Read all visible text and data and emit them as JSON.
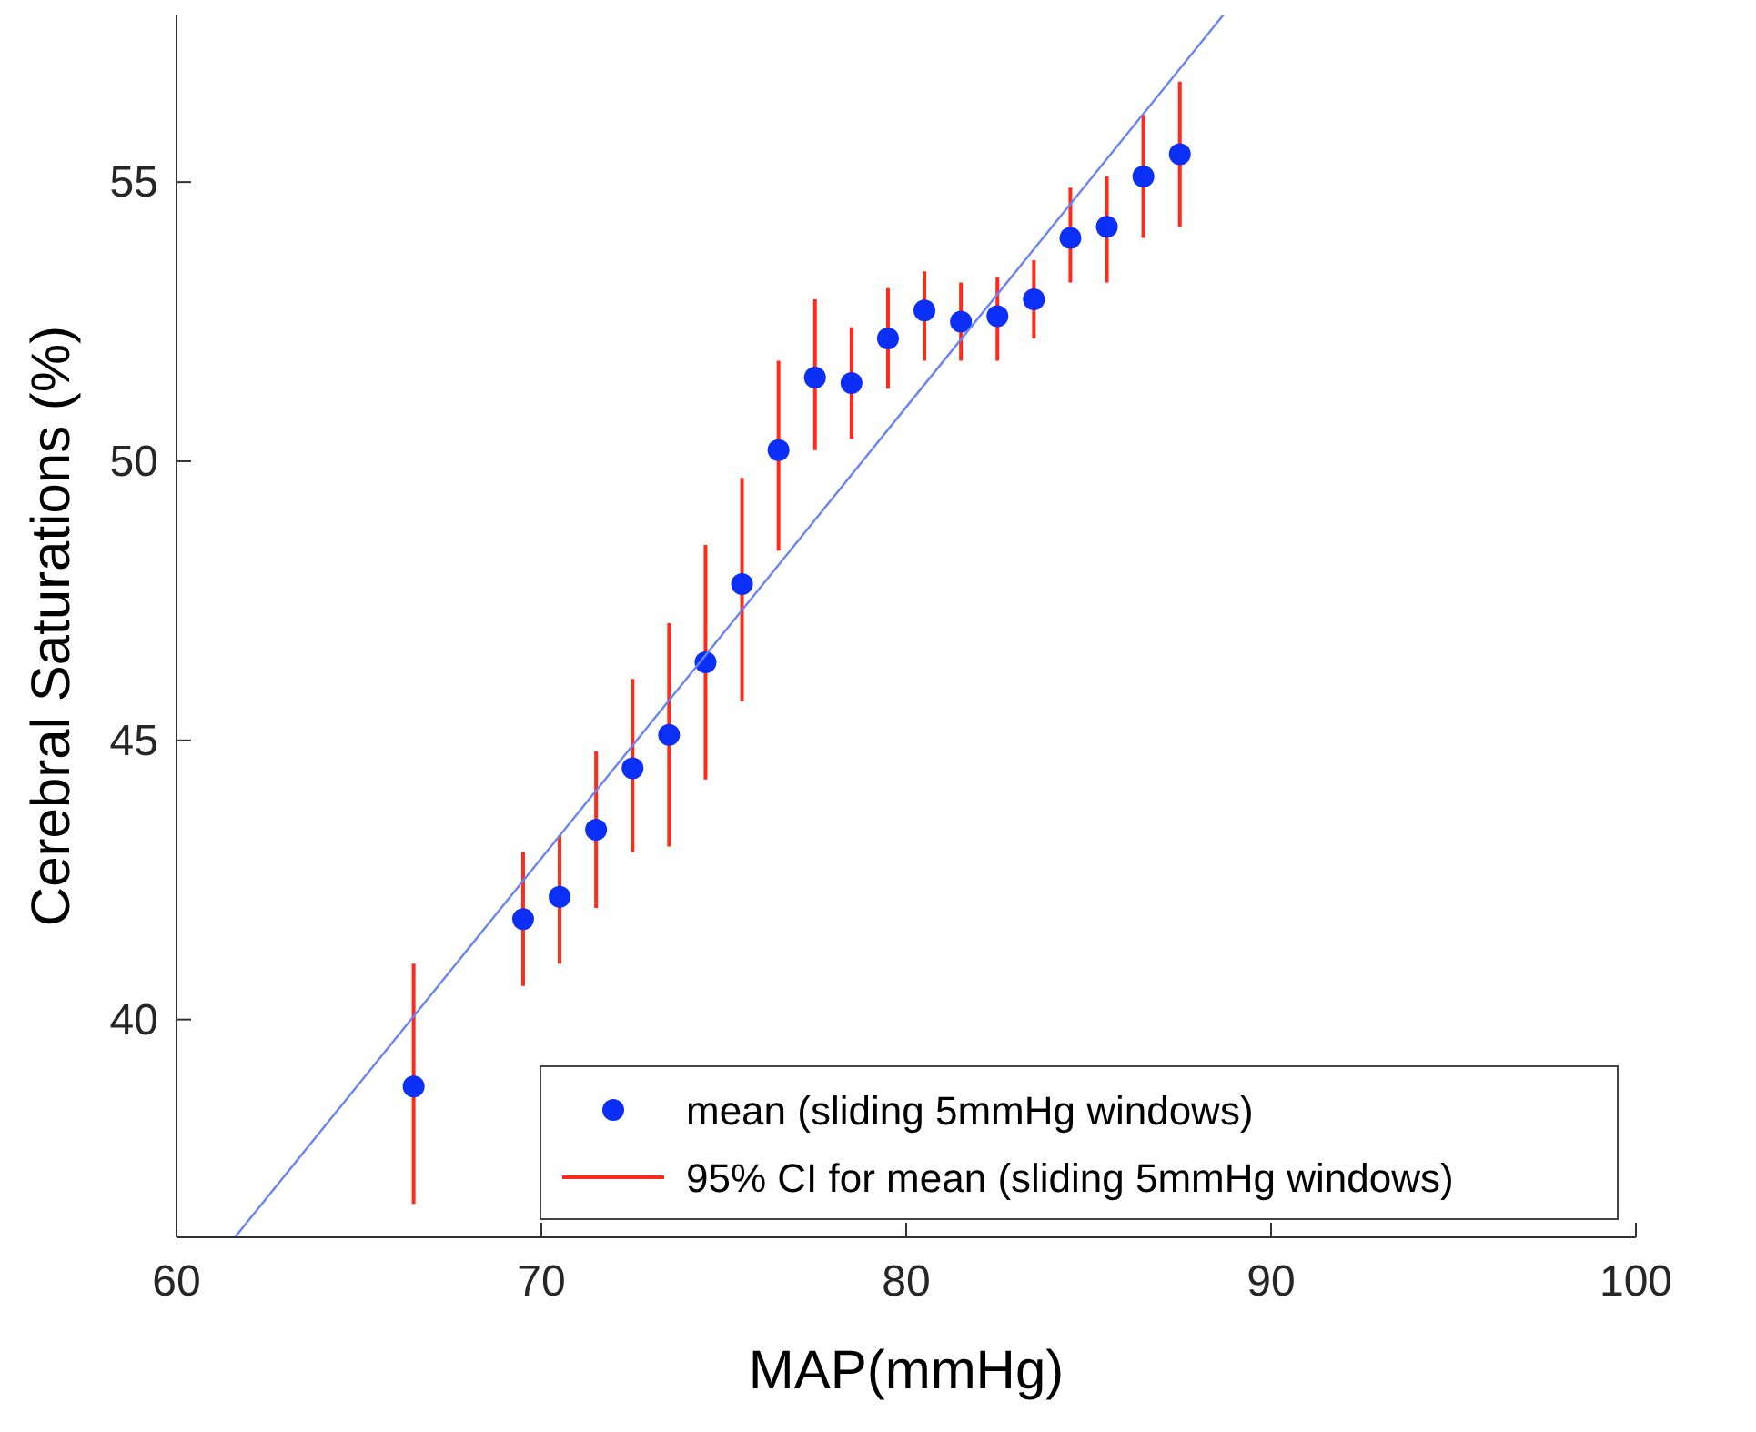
{
  "chart_data": {
    "type": "scatter",
    "xlabel": "MAP(mmHg)",
    "ylabel": "Cerebral Saturations (%)",
    "xlim": [
      60,
      100
    ],
    "xticks": [
      60,
      70,
      80,
      90,
      100
    ],
    "ylim": [
      36.1,
      58
    ],
    "yticks": [
      40,
      45,
      50,
      55
    ],
    "grid": false,
    "legend": "bottom right",
    "annotations": [
      "95% CI for mean (sliding 5mmHg windows)"
    ],
    "series": [
      {
        "name": "mean (sliding 5mmHg windows)",
        "color": "#0b2ff5",
        "marker": "circle",
        "x": [
          66.5,
          69.5,
          70.5,
          71.5,
          72.5,
          73.5,
          74.5,
          75.5,
          76.5,
          77.5,
          78.5,
          79.5,
          80.5,
          81.5,
          82.5,
          83.5,
          84.5,
          85.5,
          86.5,
          87.5
        ],
        "values": [
          38.8,
          41.8,
          42.2,
          43.4,
          44.5,
          45.1,
          46.4,
          47.8,
          50.2,
          51.5,
          51.4,
          52.2,
          52.7,
          52.5,
          52.6,
          52.9,
          54.0,
          54.2,
          55.1,
          55.5
        ],
        "errors": [
          [
            36.7,
            41.0
          ],
          [
            40.6,
            43.0
          ],
          [
            41.0,
            43.3
          ],
          [
            42.0,
            44.8
          ],
          [
            43.0,
            46.1
          ],
          [
            43.1,
            47.1
          ],
          [
            44.3,
            48.5
          ],
          [
            45.7,
            49.7
          ],
          [
            48.4,
            51.8
          ],
          [
            50.2,
            52.9
          ],
          [
            50.4,
            52.4
          ],
          [
            51.3,
            53.1
          ],
          [
            51.8,
            53.4
          ],
          [
            51.8,
            53.2
          ],
          [
            51.8,
            53.3
          ],
          [
            52.2,
            53.6
          ],
          [
            53.2,
            54.9
          ],
          [
            53.2,
            55.1
          ],
          [
            54.0,
            56.2
          ],
          [
            54.2,
            56.8
          ]
        ]
      },
      {
        "type": "line",
        "color": "#6a82f7",
        "x": [
          61.6,
          88.7
        ],
        "values": [
          36.1,
          58
        ]
      }
    ]
  }
}
